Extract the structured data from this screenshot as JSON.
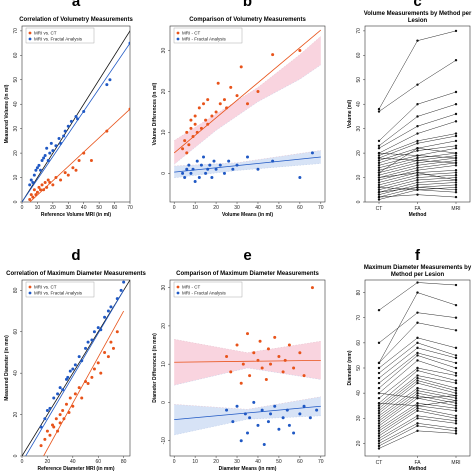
{
  "colors": {
    "ct": "#e8531a",
    "fa": "#1f58c4",
    "identity": "#111111",
    "ci_ct": "#f7c6d4",
    "ci_fa": "#c9d9f3",
    "paired": "#111111"
  },
  "chart_data": [
    {
      "id": "a",
      "letter": "a",
      "type": "scatter",
      "title": "Correlation of Volumetry Measurements",
      "xlabel": "Reference Volume MRI (in ml)",
      "ylabel": "Measured Volume (in ml)",
      "xlim": [
        0,
        70
      ],
      "ylim": [
        0,
        72
      ],
      "xticks": [
        0,
        10,
        20,
        30,
        40,
        50,
        60,
        70
      ],
      "yticks": [
        0,
        10,
        20,
        30,
        40,
        50,
        60,
        70
      ],
      "grid": false,
      "legend": "top-left",
      "identity_line": true,
      "series": [
        {
          "name": "MRI vs. CT",
          "color_key": "ct",
          "x": [
            5,
            6,
            7,
            8,
            9,
            10,
            11,
            12,
            13,
            14,
            15,
            16,
            17,
            18,
            20,
            22,
            25,
            28,
            30,
            33,
            35,
            37,
            40,
            45,
            55,
            70
          ],
          "y": [
            1,
            3,
            2,
            5,
            3,
            4,
            6,
            5,
            7,
            5,
            8,
            6,
            9,
            8,
            7,
            10,
            9,
            12,
            11,
            14,
            13,
            17,
            20,
            17,
            29,
            38
          ],
          "fit": [
            [
              0,
              -3
            ],
            [
              70,
              38
            ]
          ]
        },
        {
          "name": "MRI vs. Fractal Analysis",
          "color_key": "fa",
          "x": [
            5,
            6,
            7,
            8,
            9,
            10,
            11,
            12,
            13,
            14,
            15,
            16,
            17,
            18,
            19,
            20,
            22,
            24,
            25,
            27,
            28,
            30,
            32,
            35,
            36,
            40,
            55,
            57,
            70
          ],
          "y": [
            7,
            9,
            8,
            11,
            13,
            14,
            15,
            13,
            17,
            18,
            19,
            22,
            17,
            20,
            24,
            21,
            23,
            26,
            24,
            27,
            29,
            31,
            33,
            35,
            34,
            37,
            48,
            50,
            65
          ],
          "fit": [
            [
              0,
              0
            ],
            [
              70,
              65
            ]
          ]
        }
      ]
    },
    {
      "id": "b",
      "letter": "b",
      "type": "scatter",
      "title": "Comparison of Volumetry Measurements",
      "xlabel": "Volume Means (in ml)",
      "ylabel": "Volume Differences (in ml)",
      "xlim": [
        -2,
        72
      ],
      "ylim": [
        -7,
        36
      ],
      "xticks": [
        0,
        10,
        20,
        30,
        40,
        50,
        60,
        70
      ],
      "yticks": [
        0,
        10,
        20,
        30
      ],
      "grid": false,
      "legend": "top-left",
      "series": [
        {
          "name": "MRI - CT",
          "color_key": "ct",
          "x": [
            4,
            5,
            6,
            6,
            7,
            8,
            8,
            9,
            10,
            10,
            11,
            12,
            13,
            14,
            15,
            16,
            16,
            18,
            20,
            21,
            22,
            24,
            25,
            27,
            30,
            32,
            35,
            40,
            47,
            60
          ],
          "y": [
            6,
            8,
            5,
            10,
            7,
            11,
            13,
            9,
            12,
            14,
            10,
            16,
            11,
            17,
            13,
            12,
            18,
            14,
            15,
            22,
            17,
            18,
            16,
            21,
            19,
            26,
            17,
            20,
            29,
            30
          ],
          "fit": [
            [
              0,
              5
            ],
            [
              70,
              35
            ]
          ],
          "ci_upper": [
            [
              0,
              8
            ],
            [
              20,
              14.5
            ],
            [
              40,
              21
            ],
            [
              60,
              29
            ],
            [
              70,
              33.5
            ]
          ],
          "ci_lower": [
            [
              0,
              2.2
            ],
            [
              20,
              10.5
            ],
            [
              40,
              17.5
            ],
            [
              60,
              23
            ],
            [
              70,
              26.5
            ]
          ]
        },
        {
          "name": "MRI - Fractal Analysis",
          "color_key": "fa",
          "x": [
            4,
            5,
            6,
            7,
            8,
            9,
            10,
            11,
            12,
            13,
            14,
            15,
            16,
            17,
            18,
            19,
            20,
            22,
            24,
            26,
            28,
            30,
            35,
            40,
            47,
            60,
            66
          ],
          "y": [
            0,
            -1,
            1,
            2,
            0,
            1,
            -2,
            3,
            -1,
            2,
            4,
            0,
            1,
            2,
            -1,
            3,
            1,
            2,
            0,
            3,
            1,
            2,
            4,
            1,
            3,
            -1,
            5
          ],
          "fit": [
            [
              0,
              0.3
            ],
            [
              70,
              4
            ]
          ],
          "ci_upper": [
            [
              0,
              1.8
            ],
            [
              30,
              2.6
            ],
            [
              70,
              5.6
            ]
          ],
          "ci_lower": [
            [
              0,
              -1.1
            ],
            [
              30,
              0.7
            ],
            [
              70,
              2.4
            ]
          ]
        }
      ]
    },
    {
      "id": "c",
      "letter": "c",
      "type": "line",
      "title": "Volume Measurements by Method per Lesion",
      "xlabel": "Method",
      "ylabel": "Volume (ml)",
      "categories": [
        "CT",
        "FA",
        "MRI"
      ],
      "ylim": [
        0,
        72
      ],
      "yticks": [
        0,
        10,
        20,
        30,
        40,
        50,
        60,
        70
      ],
      "grid": false,
      "lesions": [
        [
          38,
          66,
          70
        ],
        [
          37,
          48,
          58
        ],
        [
          25,
          40,
          45
        ],
        [
          23,
          35,
          40
        ],
        [
          22,
          31,
          36
        ],
        [
          20,
          28,
          33
        ],
        [
          19,
          25,
          28
        ],
        [
          18,
          24,
          27
        ],
        [
          17,
          22,
          25
        ],
        [
          16,
          21,
          23
        ],
        [
          15,
          19,
          22
        ],
        [
          14,
          18,
          20
        ],
        [
          13,
          17,
          19
        ],
        [
          12,
          16,
          18
        ],
        [
          11,
          15,
          17
        ],
        [
          10,
          14,
          16
        ],
        [
          9,
          13,
          15
        ],
        [
          8,
          12,
          13
        ],
        [
          7,
          11,
          12
        ],
        [
          6,
          10,
          11
        ],
        [
          5,
          9,
          10
        ],
        [
          4,
          8,
          9
        ],
        [
          3,
          7,
          8
        ],
        [
          2,
          6,
          7
        ],
        [
          1,
          5,
          6
        ],
        [
          20,
          19,
          18
        ],
        [
          18,
          17,
          16
        ],
        [
          12,
          22,
          20
        ],
        [
          10,
          12,
          9
        ],
        [
          6,
          5,
          4
        ],
        [
          4,
          6,
          5
        ],
        [
          2,
          3,
          2
        ]
      ]
    },
    {
      "id": "d",
      "letter": "d",
      "type": "scatter",
      "title": "Correlation of Maximum Diameter Measurements",
      "xlabel": "Reference Diameter MRI (in mm)",
      "ylabel": "Measured Diameter (in mm)",
      "xlim": [
        0,
        85
      ],
      "ylim": [
        0,
        85
      ],
      "xticks": [
        0,
        20,
        40,
        60,
        80
      ],
      "yticks": [
        0,
        20,
        40,
        60,
        80
      ],
      "grid": false,
      "legend": "top-left",
      "identity_line": true,
      "series": [
        {
          "name": "MRI vs. CT",
          "color_key": "ct",
          "x": [
            15,
            18,
            20,
            22,
            24,
            25,
            27,
            28,
            30,
            30,
            32,
            33,
            35,
            37,
            38,
            40,
            42,
            45,
            47,
            50,
            52,
            55,
            57,
            60,
            62,
            65,
            68,
            70,
            72,
            75
          ],
          "y": [
            5,
            8,
            12,
            10,
            15,
            14,
            18,
            12,
            20,
            16,
            22,
            18,
            25,
            21,
            28,
            24,
            30,
            33,
            28,
            36,
            35,
            38,
            42,
            45,
            40,
            50,
            48,
            55,
            52,
            60
          ],
          "fit": [
            [
              17,
              0
            ],
            [
              80,
              70
            ]
          ]
        },
        {
          "name": "MRI vs. Fractal Analysis",
          "color_key": "fa",
          "x": [
            15,
            18,
            20,
            22,
            25,
            28,
            30,
            32,
            35,
            36,
            38,
            40,
            42,
            45,
            47,
            50,
            52,
            55,
            57,
            60,
            62,
            65,
            68,
            70,
            75,
            78,
            80
          ],
          "y": [
            14,
            18,
            22,
            23,
            28,
            30,
            33,
            32,
            37,
            38,
            41,
            42,
            44,
            48,
            46,
            52,
            55,
            56,
            60,
            62,
            61,
            67,
            70,
            72,
            76,
            80,
            84
          ],
          "fit": [
            [
              0,
              -3
            ],
            [
              80,
              80
            ]
          ]
        }
      ]
    },
    {
      "id": "e",
      "letter": "e",
      "type": "scatter",
      "title": "Comparison of Maximum Diameter Measurements",
      "xlabel": "Diameter Means (in mm)",
      "ylabel": "Diameter Differences (in mm)",
      "xlim": [
        -2,
        72
      ],
      "ylim": [
        -14,
        32
      ],
      "xticks": [
        0,
        10,
        20,
        30,
        40,
        50,
        60,
        70
      ],
      "yticks": [
        -10,
        0,
        10,
        20,
        30
      ],
      "grid": false,
      "legend": "top-left",
      "series": [
        {
          "name": "MRI - CT",
          "color_key": "ct",
          "x": [
            25,
            27,
            30,
            32,
            33,
            35,
            36,
            38,
            40,
            41,
            42,
            44,
            45,
            46,
            48,
            50,
            52,
            53,
            55,
            57,
            60,
            62,
            66
          ],
          "y": [
            12,
            8,
            15,
            5,
            10,
            18,
            7,
            13,
            11,
            16,
            9,
            6,
            14,
            10,
            17,
            12,
            8,
            11,
            15,
            9,
            13,
            7,
            30
          ],
          "fit": [
            [
              0,
              10.5
            ],
            [
              70,
              11
            ]
          ],
          "ci_upper": [
            [
              0,
              16.5
            ],
            [
              35,
              13
            ],
            [
              70,
              16
            ]
          ],
          "ci_lower": [
            [
              0,
              4.5
            ],
            [
              35,
              9
            ],
            [
              70,
              6
            ]
          ]
        },
        {
          "name": "MRI - Fractal Analysis",
          "color_key": "fa",
          "x": [
            25,
            28,
            30,
            32,
            34,
            35,
            36,
            38,
            40,
            42,
            43,
            45,
            46,
            48,
            50,
            52,
            54,
            55,
            57,
            60,
            62,
            65,
            68
          ],
          "y": [
            -2,
            -5,
            -1,
            -10,
            -3,
            -8,
            -4,
            0,
            -6,
            -2,
            -11,
            -5,
            -3,
            -1,
            -7,
            -4,
            -2,
            -6,
            -8,
            -3,
            -1,
            -4,
            -2
          ],
          "fit": [
            [
              0,
              -4.5
            ],
            [
              70,
              -1
            ]
          ],
          "ci_upper": [
            [
              0,
              -0.5
            ],
            [
              35,
              -1.8
            ],
            [
              70,
              1.5
            ]
          ],
          "ci_lower": [
            [
              0,
              -8.5
            ],
            [
              35,
              -4.4
            ],
            [
              70,
              -3.5
            ]
          ]
        }
      ]
    },
    {
      "id": "f",
      "letter": "f",
      "type": "line",
      "title": "Maximum Diameter Measurements by Method per Lesion",
      "xlabel": "Method",
      "ylabel": "Diameter (mm)",
      "categories": [
        "CT",
        "FA",
        "MRI"
      ],
      "ylim": [
        15,
        85
      ],
      "yticks": [
        20,
        30,
        40,
        50,
        60,
        70,
        80
      ],
      "grid": false,
      "lesions": [
        [
          73,
          84,
          83
        ],
        [
          60,
          72,
          70
        ],
        [
          52,
          68,
          65
        ],
        [
          50,
          62,
          58
        ],
        [
          48,
          60,
          55
        ],
        [
          46,
          58,
          54
        ],
        [
          44,
          56,
          52
        ],
        [
          42,
          55,
          50
        ],
        [
          40,
          53,
          48
        ],
        [
          38,
          50,
          47
        ],
        [
          36,
          49,
          45
        ],
        [
          35,
          47,
          44
        ],
        [
          34,
          46,
          42
        ],
        [
          33,
          45,
          41
        ],
        [
          32,
          44,
          40
        ],
        [
          31,
          42,
          39
        ],
        [
          30,
          41,
          38
        ],
        [
          29,
          40,
          37
        ],
        [
          28,
          39,
          36
        ],
        [
          27,
          38,
          35
        ],
        [
          26,
          36,
          34
        ],
        [
          25,
          35,
          33
        ],
        [
          24,
          34,
          31
        ],
        [
          23,
          33,
          30
        ],
        [
          22,
          31,
          29
        ],
        [
          21,
          30,
          28
        ],
        [
          20,
          28,
          26
        ],
        [
          19,
          27,
          25
        ],
        [
          18,
          25,
          24
        ],
        [
          40,
          38,
          39
        ],
        [
          36,
          35,
          37
        ],
        [
          52,
          80,
          75
        ]
      ]
    }
  ]
}
